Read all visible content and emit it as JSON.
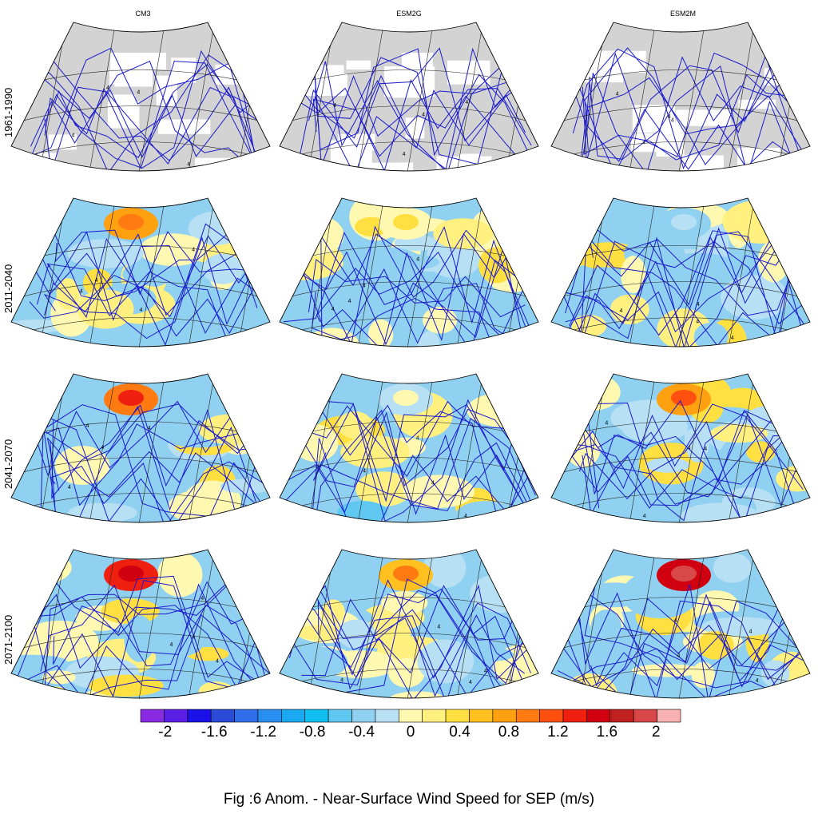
{
  "figure": {
    "caption": "Fig :6  Anom.  - Near-Surface Wind Speed for SEP (m/s)",
    "columns": [
      "CM3",
      "ESM2G",
      "ESM2M"
    ],
    "rows": [
      "1961-1990",
      "2011-2040",
      "2041-2070",
      "2071-2100"
    ],
    "contour_label": "4"
  },
  "chart_data": {
    "type": "heatmap",
    "title": "Fig :6  Anom.  - Near-Surface Wind Speed for SEP (m/s)",
    "variable": "Near-Surface Wind Speed anomaly",
    "units": "m/s",
    "month": "SEP",
    "models": [
      "CM3",
      "ESM2G",
      "ESM2M"
    ],
    "periods": [
      "1961-1990",
      "2011-2040",
      "2041-2070",
      "2071-2100"
    ],
    "colorbar": {
      "tick_labels": [
        "-2",
        "-1.6",
        "-1.2",
        "-0.8",
        "-0.4",
        "0",
        "0.4",
        "0.8",
        "1.2",
        "1.6",
        "2"
      ],
      "tick_values": [
        -2,
        -1.6,
        -1.2,
        -0.8,
        -0.4,
        0,
        0.4,
        0.8,
        1.2,
        1.6,
        2
      ],
      "levels": [
        -2.2,
        -2,
        -1.8,
        -1.6,
        -1.4,
        -1.2,
        -1,
        -0.8,
        -0.6,
        -0.4,
        -0.2,
        0,
        0.2,
        0.4,
        0.6,
        0.8,
        1,
        1.2,
        1.4,
        1.6,
        1.8,
        2,
        2.2
      ],
      "range": [
        -2.2,
        2.2
      ],
      "colors": [
        "#8a2be2",
        "#5a1ee6",
        "#1a10e8",
        "#2a4ad8",
        "#2f6ee8",
        "#2a8ef0",
        "#1aa8f0",
        "#10c0f2",
        "#60c8f0",
        "#90d0f0",
        "#b8e0f4",
        "#fff8b0",
        "#fff080",
        "#ffe040",
        "#ffc020",
        "#ffa010",
        "#ff7a10",
        "#ff5010",
        "#f02010",
        "#d00010",
        "#c02020",
        "#d84848",
        "#f8b0b0"
      ]
    },
    "panel_summary": {
      "1961-1990": {
        "CM3": "climatology, no shading",
        "ESM2G": "climatology, no shading",
        "ESM2M": "climatology, no shading"
      },
      "2011-2040": {
        "CM3": "positive north, mixed",
        "ESM2G": "mostly negative",
        "ESM2M": "positive north and central"
      },
      "2041-2070": {
        "CM3": "strong positive north",
        "ESM2G": "mostly negative",
        "ESM2M": "positive north"
      },
      "2071-2100": {
        "CM3": "strong positive north and south, negative west",
        "ESM2G": "positive north band, negative central",
        "ESM2M": "strong positive north, negative central"
      }
    }
  }
}
